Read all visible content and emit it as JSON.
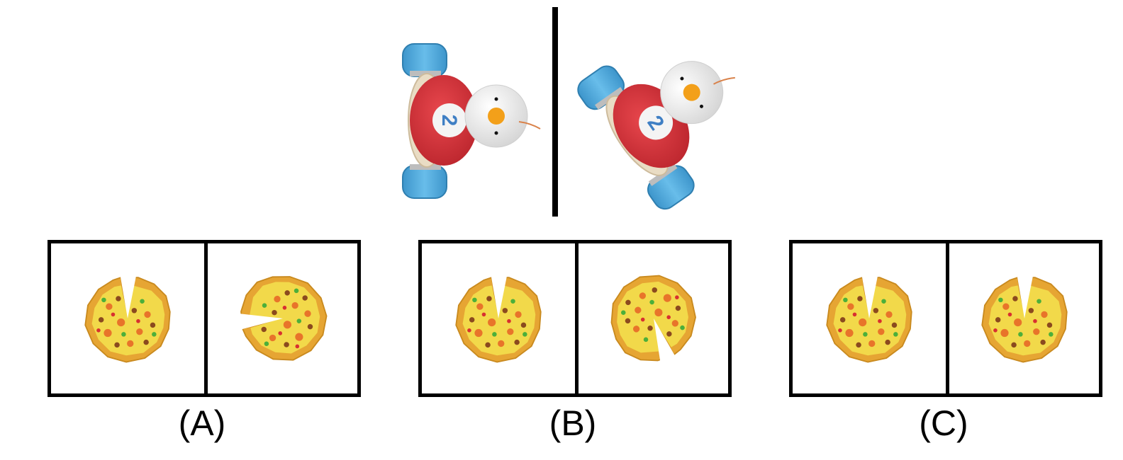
{
  "example": {
    "left_toy_number": "2",
    "right_toy_number": "2",
    "left_rotation_deg": 0,
    "right_rotation_deg": -35
  },
  "options": [
    {
      "label": "(A)",
      "left_rotation_deg": 0,
      "right_rotation_deg": -95
    },
    {
      "label": "(B)",
      "left_rotation_deg": 0,
      "right_rotation_deg": 160
    },
    {
      "label": "(C)",
      "left_rotation_deg": 0,
      "right_rotation_deg": 0
    }
  ],
  "colors": {
    "wheel": "#4aa8dc",
    "body_red": "#d8303a",
    "body_cream": "#e9dcc4",
    "number_blue": "#3f7fc4",
    "beak": "#f3a01a",
    "crust": "#e6a533",
    "cheese": "#f2d94a"
  }
}
